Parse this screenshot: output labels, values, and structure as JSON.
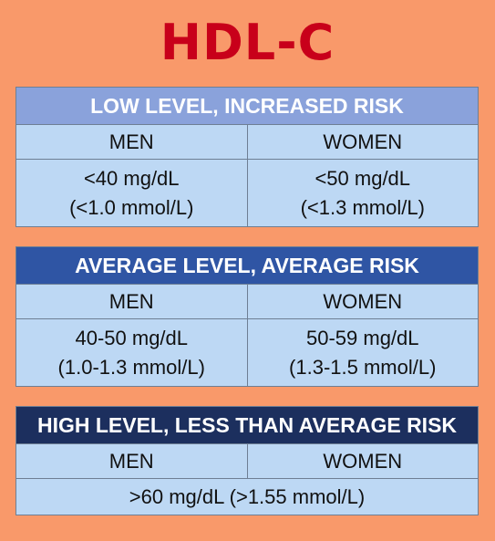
{
  "title": "HDL-C",
  "tables": [
    {
      "header": "LOW LEVEL, INCREASED RISK",
      "men_label": "MEN",
      "women_label": "WOMEN",
      "men_value": [
        "<40 mg/dL",
        "(<1.0 mmol/L)"
      ],
      "women_value": [
        "<50 mg/dL",
        "(<1.3 mmol/L)"
      ]
    },
    {
      "header": "AVERAGE LEVEL, AVERAGE RISK",
      "men_label": "MEN",
      "women_label": "WOMEN",
      "men_value": [
        "40-50 mg/dL",
        "(1.0-1.3 mmol/L)"
      ],
      "women_value": [
        "50-59 mg/dL",
        "(1.3-1.5 mmol/L)"
      ]
    },
    {
      "header": "HIGH LEVEL, LESS THAN AVERAGE RISK",
      "men_label": "MEN",
      "women_label": "WOMEN",
      "combined_value": ">60 mg/dL (>1.55 mmol/L)"
    }
  ],
  "colors": {
    "background": "#F9996A",
    "title": "#C8001A",
    "header_low": "#8AA2DB",
    "header_average": "#2F55A4",
    "header_high": "#1C2F5E",
    "cell": "#BDD8F4"
  }
}
